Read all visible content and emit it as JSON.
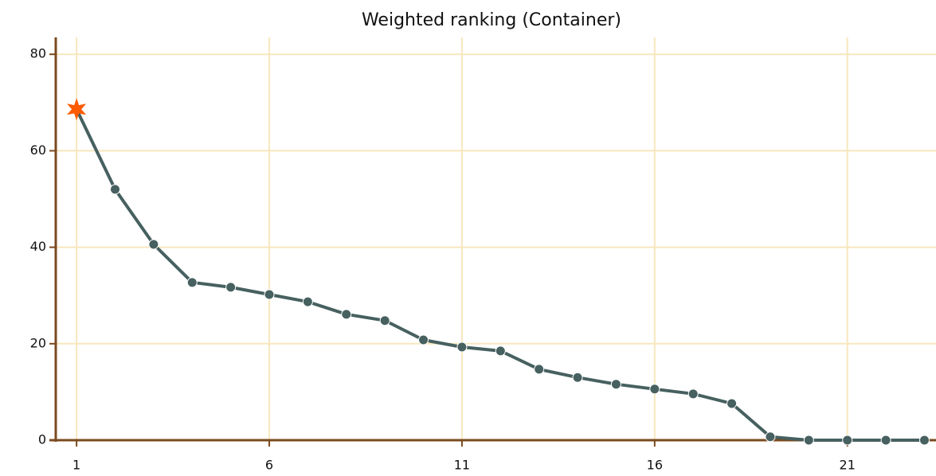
{
  "chart_data": {
    "type": "line",
    "title": "Weighted ranking (Container)",
    "x": [
      1,
      2,
      3,
      4,
      5,
      6,
      7,
      8,
      9,
      10,
      11,
      12,
      13,
      14,
      15,
      16,
      17,
      18,
      19,
      20,
      21,
      22,
      23
    ],
    "series": [
      {
        "name": "Weighted ranking",
        "color": "#476060",
        "values": [
          68.6,
          52,
          40.6,
          32.7,
          31.7,
          30.2,
          28.7,
          26.1,
          24.8,
          20.8,
          19.3,
          18.5,
          14.7,
          13,
          11.6,
          10.6,
          9.6,
          7.6,
          0.7,
          0,
          0,
          0,
          0
        ]
      }
    ],
    "xlim": [
      0.46,
      23.3
    ],
    "xticks": [
      1,
      6,
      11,
      16,
      21
    ],
    "ylim": [
      0,
      83.5
    ],
    "yticks": [
      0,
      20,
      40,
      60,
      80
    ],
    "grid": true,
    "grid_color": "#f7e7bd",
    "axis_color": "#7a4a1e",
    "highlight": {
      "index": 0,
      "marker": "star",
      "color": "#ff5a00"
    }
  }
}
